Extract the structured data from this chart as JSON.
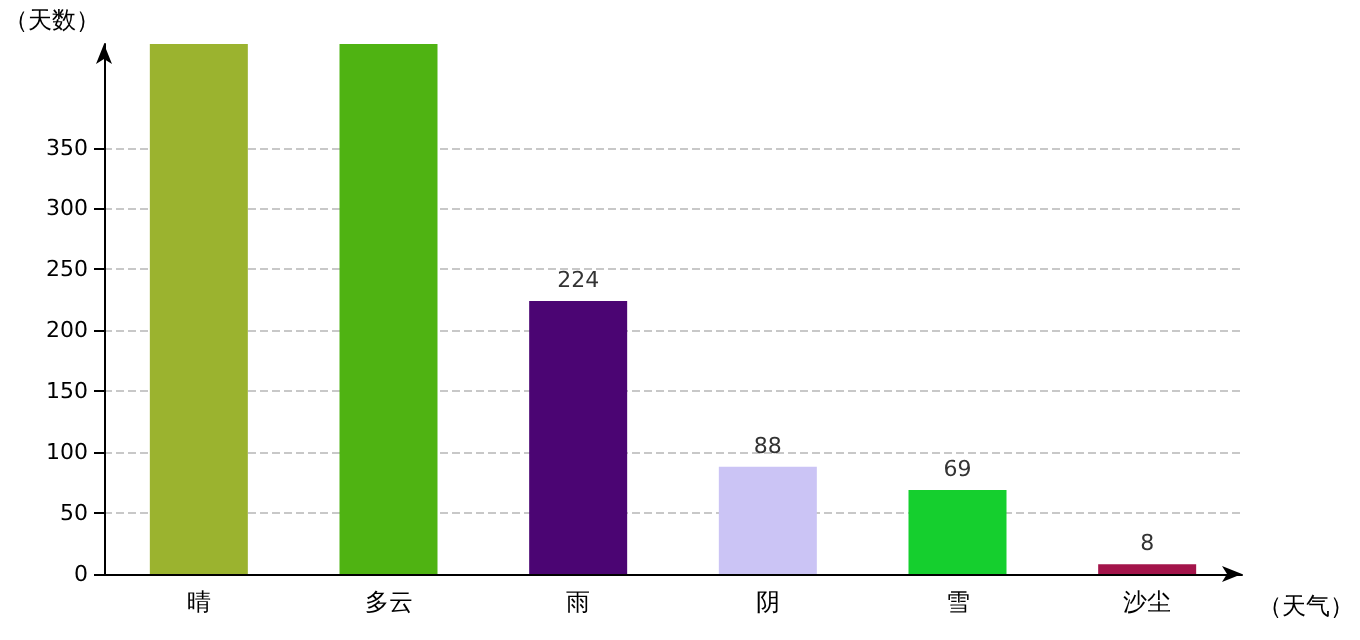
{
  "chart_data": {
    "type": "bar",
    "xlabel": "（天气）",
    "ylabel": "（天数）",
    "categories": [
      "晴",
      "多云",
      "雨",
      "阴",
      "雪",
      "沙尘"
    ],
    "values": [
      435,
      435,
      224,
      88,
      69,
      8
    ],
    "colors": [
      "#9bb32f",
      "#4fb312",
      "#4b0573",
      "#cbc4f5",
      "#15cf2e",
      "#a3144a"
    ],
    "value_labels": [
      null,
      null,
      "224",
      "88",
      "69",
      "8"
    ],
    "ylim": [
      0,
      435
    ],
    "yticks": [
      0,
      50,
      100,
      150,
      200,
      250,
      300,
      350
    ],
    "grid": "y"
  }
}
